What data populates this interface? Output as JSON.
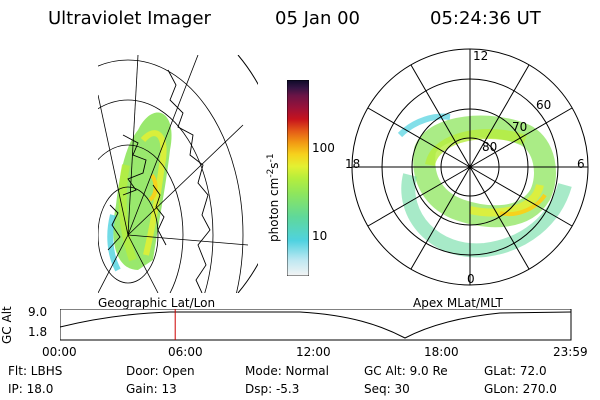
{
  "header": {
    "instrument": "Ultraviolet Imager",
    "date": "05 Jan 00",
    "time": "05:24:36 UT"
  },
  "left_panel": {
    "caption": "Geographic Lat/Lon"
  },
  "right_panel": {
    "caption": "Apex MLat/MLT",
    "mlt_labels": [
      "12",
      "18",
      "6",
      "0"
    ],
    "lat_labels": [
      "60",
      "70",
      "80"
    ]
  },
  "colorbar": {
    "label": "photon cm",
    "label_exp1": "-2",
    "label_mid": "s",
    "label_exp2": "-1",
    "tick_100": "100",
    "tick_10": "10",
    "colors": [
      "#f4f4f4",
      "#bfe8f2",
      "#4fd2e0",
      "#5fd89b",
      "#8ee65d",
      "#b6ee3c",
      "#e4f032",
      "#f6d21d",
      "#f29a13",
      "#e45a17",
      "#c7131d",
      "#991239",
      "#6b1446",
      "#351443",
      "#0c0a28"
    ]
  },
  "altitude_strip": {
    "axis_title": "GC Alt",
    "y_top": "9.0",
    "y_bottom": "1.8",
    "time_labels": [
      "00:00",
      "06:00",
      "12:00",
      "18:00",
      "23:59"
    ],
    "current_time_fraction": 0.2254,
    "marker_color": "#cc0000"
  },
  "footer": {
    "row1": {
      "flt": "Flt: LBHS",
      "door": "Door: Open",
      "mode": "Mode: Normal",
      "gcalt": "GC Alt: 9.0 Re",
      "glat": "GLat:  72.0"
    },
    "row2": {
      "ip": "IP: 18.0",
      "gain": "Gain: 13",
      "dsp": "Dsp:   -5.3",
      "seq": "Seq: 30",
      "glon": "GLon: 270.0"
    }
  }
}
